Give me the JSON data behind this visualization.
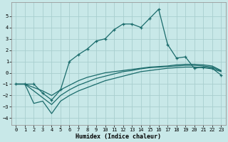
{
  "xlabel": "Humidex (Indice chaleur)",
  "background_color": "#c8e8e8",
  "grid_color": "#a8cece",
  "line_color": "#1a6b6b",
  "xlim": [
    -0.5,
    23.5
  ],
  "ylim": [
    -4.6,
    6.2
  ],
  "xticks": [
    0,
    1,
    2,
    3,
    4,
    5,
    6,
    7,
    8,
    9,
    10,
    11,
    12,
    13,
    14,
    15,
    16,
    17,
    18,
    19,
    20,
    21,
    22,
    23
  ],
  "yticks": [
    -4,
    -3,
    -2,
    -1,
    0,
    1,
    2,
    3,
    4,
    5
  ],
  "line_main_x": [
    0,
    1,
    2,
    3,
    4,
    5,
    6,
    7,
    8,
    9,
    10,
    11,
    12,
    13,
    14,
    15,
    16,
    17,
    18,
    19,
    20,
    21,
    22,
    23
  ],
  "line_main_y": [
    -1.0,
    -1.0,
    -1.0,
    -1.8,
    -2.4,
    -1.5,
    1.0,
    1.6,
    2.1,
    2.8,
    3.0,
    3.8,
    4.3,
    4.3,
    4.0,
    4.8,
    5.6,
    2.5,
    1.3,
    1.4,
    0.4,
    0.5,
    0.4,
    -0.2
  ],
  "line2_x": [
    0,
    1,
    2,
    3,
    4,
    5,
    6,
    7,
    8,
    9,
    10,
    11,
    12,
    13,
    14,
    15,
    16,
    17,
    18,
    19,
    20,
    21,
    22,
    23
  ],
  "line2_y": [
    -1.0,
    -1.0,
    -1.3,
    -1.6,
    -2.0,
    -1.5,
    -1.1,
    -0.7,
    -0.4,
    -0.2,
    0.0,
    0.1,
    0.2,
    0.3,
    0.4,
    0.5,
    0.55,
    0.6,
    0.7,
    0.75,
    0.75,
    0.7,
    0.6,
    0.2
  ],
  "line3_x": [
    0,
    1,
    2,
    3,
    4,
    5,
    6,
    7,
    8,
    9,
    10,
    11,
    12,
    13,
    14,
    15,
    16,
    17,
    18,
    19,
    20,
    21,
    22,
    23
  ],
  "line3_y": [
    -1.0,
    -1.0,
    -1.6,
    -2.2,
    -2.8,
    -2.0,
    -1.5,
    -1.1,
    -0.8,
    -0.5,
    -0.3,
    -0.1,
    0.1,
    0.2,
    0.35,
    0.45,
    0.5,
    0.55,
    0.6,
    0.65,
    0.65,
    0.6,
    0.5,
    0.15
  ],
  "line4_x": [
    0,
    1,
    2,
    3,
    4,
    5,
    6,
    7,
    8,
    9,
    10,
    11,
    12,
    13,
    14,
    15,
    16,
    17,
    18,
    19,
    20,
    21,
    22,
    23
  ],
  "line4_y": [
    -1.0,
    -1.0,
    -2.7,
    -2.5,
    -3.6,
    -2.5,
    -2.0,
    -1.6,
    -1.3,
    -1.0,
    -0.7,
    -0.5,
    -0.3,
    -0.1,
    0.1,
    0.2,
    0.3,
    0.4,
    0.45,
    0.5,
    0.5,
    0.45,
    0.35,
    0.1
  ]
}
